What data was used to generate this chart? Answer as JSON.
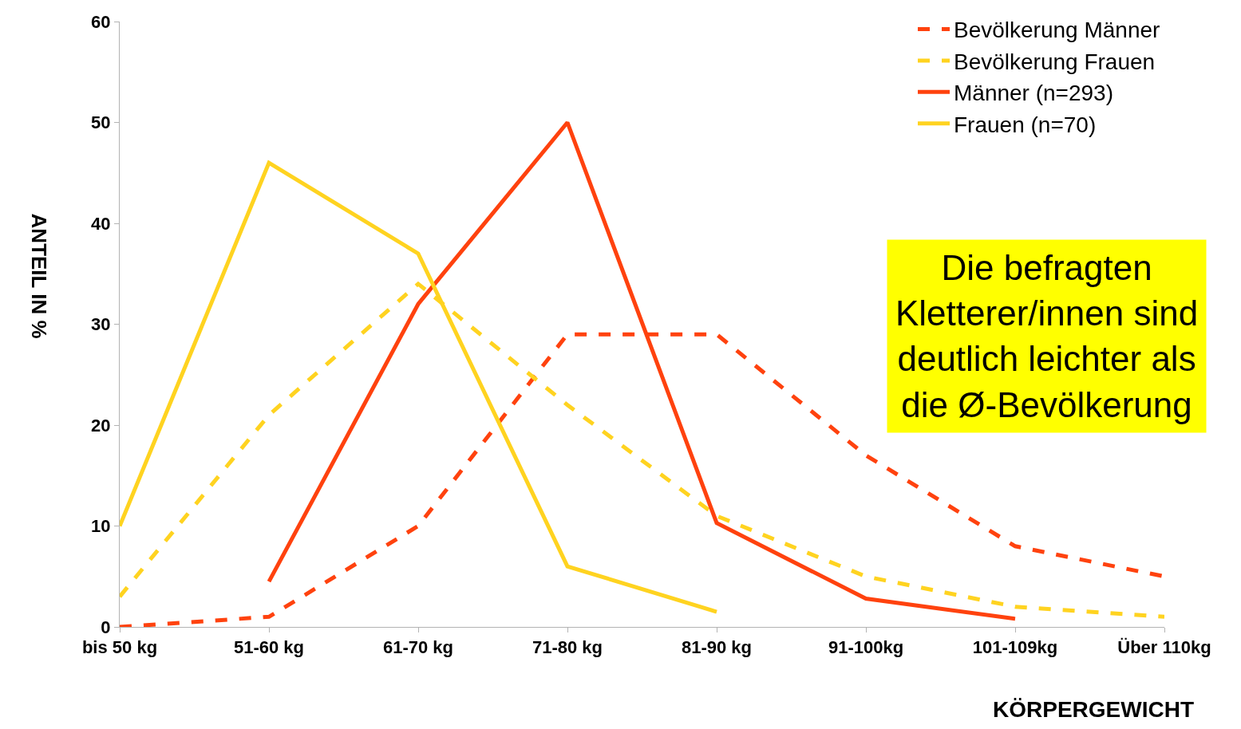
{
  "chart_data": {
    "type": "line",
    "xlabel": "KÖRPERGEWICHT",
    "ylabel": "ANTEIL IN %",
    "categories": [
      "bis 50 kg",
      "51-60 kg",
      "61-70 kg",
      "71-80 kg",
      "81-90 kg",
      "91-100kg",
      "101-109kg",
      "Über 110kg"
    ],
    "series": [
      {
        "name": "Bevölkerung Männer",
        "color": "#ff420e",
        "line_style": "dashed",
        "values": [
          0,
          1,
          10,
          29,
          29,
          17,
          8,
          5
        ]
      },
      {
        "name": "Bevölkerung Frauen",
        "color": "#ffd320",
        "line_style": "dashed",
        "values": [
          3,
          21,
          34,
          22,
          11,
          5,
          2,
          1
        ]
      },
      {
        "name": "Männer (n=293)",
        "color": "#ff420e",
        "line_style": "solid",
        "values": [
          null,
          4.5,
          32,
          50,
          10.3,
          2.8,
          0.8,
          null
        ]
      },
      {
        "name": "Frauen (n=70)",
        "color": "#ffd320",
        "line_style": "solid",
        "values": [
          10,
          46,
          37,
          6,
          1.5,
          null,
          null,
          null
        ]
      }
    ],
    "ylim": [
      0,
      60
    ],
    "yticks": [
      0,
      10,
      20,
      30,
      40,
      50,
      60
    ],
    "legend": "top right",
    "marker": "none",
    "annotations": [
      "Die befragten Kletterer/innen sind deutlich leichter als die Ø-Bevölkerung"
    ]
  }
}
